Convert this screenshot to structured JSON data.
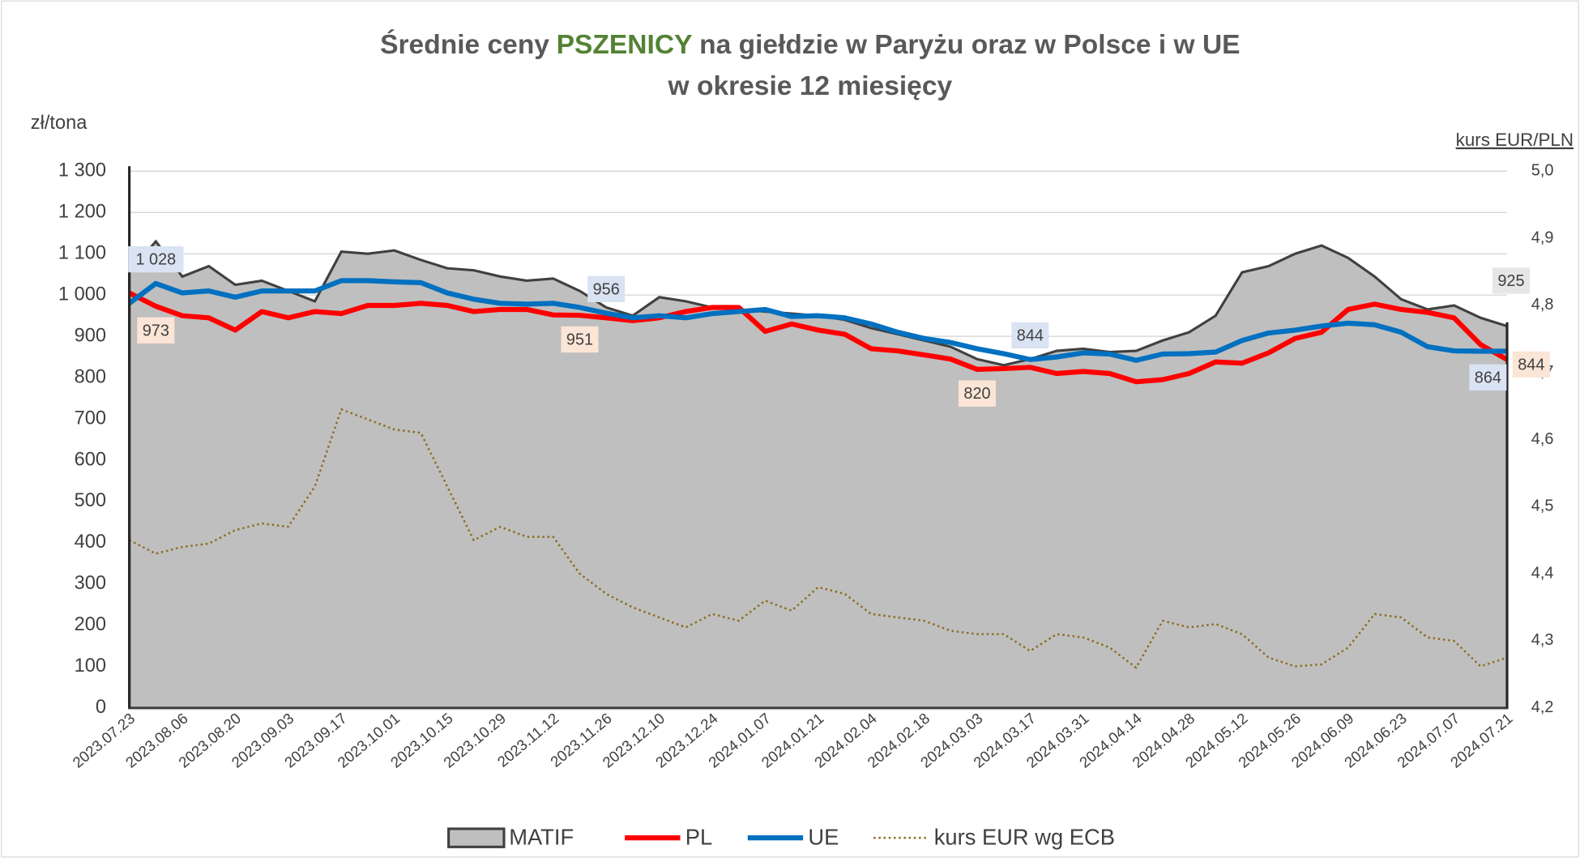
{
  "chart_data": {
    "type": "line",
    "title": {
      "before": "Średnie ceny",
      "highlight": "PSZENICY",
      "after": "na giełdzie w Paryżu oraz w Polsce i w UE"
    },
    "subtitle": "w okresie 12 miesięcy",
    "y_label": "zł/tona",
    "y2_label": "kurs EUR/PLN",
    "categories": [
      "2023.07.23",
      null,
      "2023.08.06",
      null,
      "2023.08.20",
      null,
      "2023.09.03",
      null,
      "2023.09.17",
      null,
      "2023.10.01",
      null,
      "2023.10.15",
      null,
      "2023.10.29",
      null,
      "2023.11.12",
      null,
      "2023.11.26",
      null,
      "2023.12.10",
      null,
      "2023.12.24",
      null,
      "2024.01.07",
      null,
      "2024.01.21",
      null,
      "2024.02.04",
      null,
      "2024.02.18",
      null,
      "2024.03.03",
      null,
      "2024.03.17",
      null,
      "2024.03.31",
      null,
      "2024.04.14",
      null,
      "2024.04.28",
      null,
      "2024.05.12",
      null,
      "2024.05.26",
      null,
      "2024.06.09",
      null,
      "2024.06.23",
      null,
      "2024.07.07",
      null,
      "2024.07.21"
    ],
    "ylim": [
      0,
      1300
    ],
    "yticks": [
      0,
      100,
      200,
      300,
      400,
      500,
      600,
      700,
      800,
      900,
      {
        "value": 1000,
        "label": "1 000"
      },
      {
        "value": 1100,
        "label": "1 100"
      },
      {
        "value": 1200,
        "label": "1 200"
      },
      {
        "value": 1300,
        "label": "1 300"
      }
    ],
    "y2lim": [
      4.2,
      5.0
    ],
    "y2ticks": [
      {
        "value": 4.2,
        "label": "4,2"
      },
      {
        "value": 4.3,
        "label": "4,3"
      },
      {
        "value": 4.4,
        "label": "4,4"
      },
      {
        "value": 4.5,
        "label": "4,5"
      },
      {
        "value": 4.6,
        "label": "4,6"
      },
      {
        "value": 4.7,
        "label": "4,7"
      },
      {
        "value": 4.8,
        "label": "4,8"
      },
      {
        "value": 4.9,
        "label": "4,9"
      },
      {
        "value": 5.0,
        "label": "5,0"
      }
    ],
    "grid": true,
    "legend": "bottom",
    "series": [
      {
        "name": "MATIF",
        "style": "area",
        "color": "#bfbfbf",
        "values": [
          1055,
          1130,
          1045,
          1070,
          1025,
          1035,
          1010,
          985,
          1105,
          1100,
          1108,
          1085,
          1065,
          1060,
          1045,
          1035,
          1040,
          1010,
          970,
          950,
          995,
          985,
          970,
          965,
          960,
          955,
          950,
          940,
          920,
          905,
          890,
          875,
          845,
          830,
          845,
          865,
          870,
          862,
          865,
          890,
          910,
          950,
          1055,
          1070,
          1100,
          1120,
          1090,
          1045,
          990,
          965,
          975,
          945,
          925
        ],
        "value_labels": [
          null,
          null,
          null,
          null,
          null,
          null,
          null,
          null,
          null,
          null,
          null,
          null,
          null,
          null,
          null,
          null,
          null,
          null,
          null,
          null,
          null,
          null,
          null,
          null,
          null,
          null,
          null,
          null,
          null,
          null,
          null,
          null,
          null,
          null,
          null,
          null,
          null,
          null,
          null,
          null,
          null,
          null,
          null,
          null,
          null,
          null,
          null,
          null,
          null,
          null,
          null,
          null,
          "925"
        ]
      },
      {
        "name": "PL",
        "style": "line",
        "color": "#ff0000",
        "values": [
          1005,
          973,
          950,
          945,
          915,
          960,
          945,
          960,
          955,
          975,
          975,
          980,
          975,
          960,
          965,
          965,
          952,
          951,
          945,
          938,
          945,
          960,
          970,
          970,
          912,
          930,
          915,
          905,
          870,
          865,
          855,
          845,
          820,
          822,
          825,
          810,
          815,
          810,
          790,
          795,
          810,
          838,
          835,
          860,
          895,
          910,
          965,
          978,
          965,
          958,
          945,
          880,
          844
        ],
        "value_labels": [
          null,
          "973",
          null,
          null,
          null,
          null,
          null,
          null,
          null,
          null,
          null,
          null,
          null,
          null,
          null,
          null,
          null,
          "951",
          null,
          null,
          null,
          null,
          null,
          null,
          null,
          null,
          null,
          null,
          null,
          null,
          null,
          null,
          "820",
          null,
          null,
          null,
          null,
          null,
          null,
          null,
          null,
          null,
          null,
          null,
          null,
          null,
          null,
          null,
          null,
          null,
          null,
          null,
          "844"
        ]
      },
      {
        "name": "UE",
        "style": "line",
        "color": "#0070c0",
        "values": [
          980,
          1028,
          1005,
          1010,
          995,
          1010,
          1010,
          1010,
          1035,
          1035,
          1032,
          1030,
          1005,
          990,
          980,
          978,
          980,
          970,
          956,
          945,
          950,
          945,
          955,
          960,
          965,
          948,
          950,
          945,
          930,
          910,
          895,
          885,
          870,
          858,
          844,
          850,
          860,
          857,
          842,
          857,
          858,
          862,
          890,
          908,
          915,
          925,
          932,
          928,
          910,
          875,
          865,
          864,
          864
        ],
        "value_labels": [
          null,
          "1 028",
          null,
          null,
          null,
          null,
          null,
          null,
          null,
          null,
          null,
          null,
          null,
          null,
          null,
          null,
          null,
          null,
          "956",
          null,
          null,
          null,
          null,
          null,
          null,
          null,
          null,
          null,
          null,
          null,
          null,
          null,
          null,
          null,
          "844",
          null,
          null,
          null,
          null,
          null,
          null,
          null,
          null,
          null,
          null,
          null,
          null,
          null,
          null,
          null,
          null,
          null,
          "864"
        ]
      },
      {
        "name": "kurs EUR wg ECB",
        "style": "dotted",
        "axis": "y2",
        "color": "#8c6d1f",
        "values": [
          4.45,
          4.43,
          4.44,
          4.445,
          4.465,
          4.475,
          4.47,
          4.53,
          4.645,
          4.63,
          4.615,
          4.61,
          4.53,
          4.45,
          4.47,
          4.455,
          4.455,
          4.4,
          4.37,
          4.35,
          4.335,
          4.32,
          4.34,
          4.33,
          4.36,
          4.345,
          4.38,
          4.37,
          4.34,
          4.335,
          4.33,
          4.315,
          4.31,
          4.31,
          4.285,
          4.31,
          4.305,
          4.29,
          4.26,
          4.33,
          4.32,
          4.325,
          4.31,
          4.275,
          4.262,
          4.265,
          4.29,
          4.34,
          4.335,
          4.305,
          4.3,
          4.262,
          4.275
        ]
      }
    ]
  }
}
